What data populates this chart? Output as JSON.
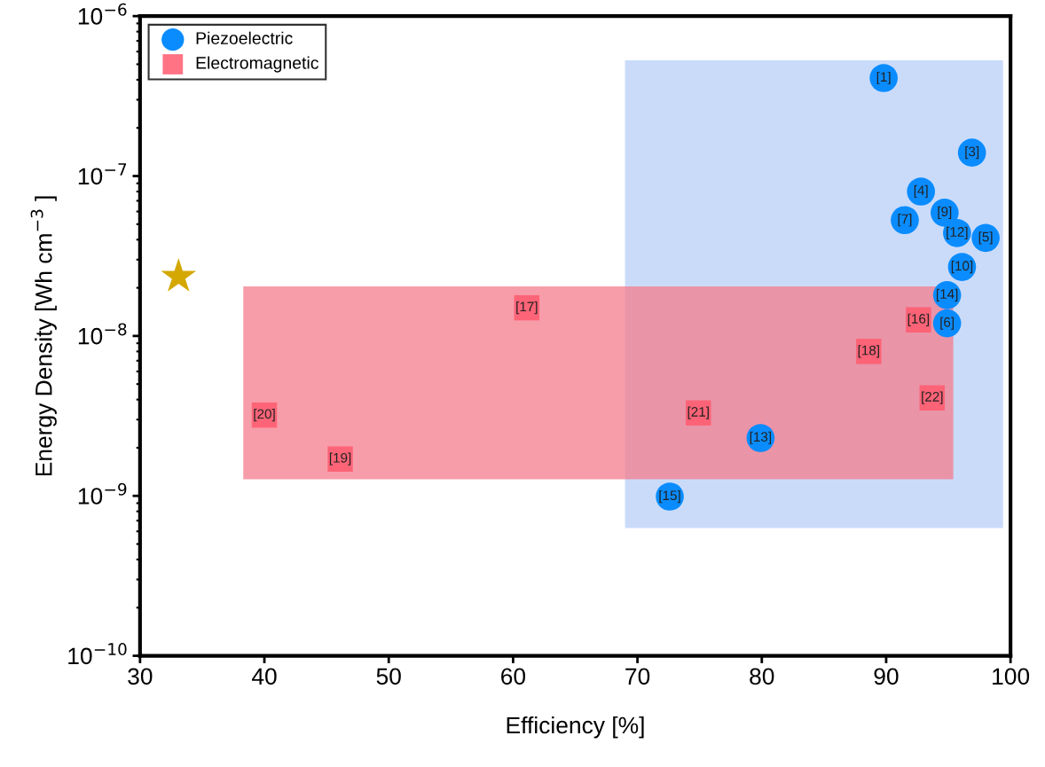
{
  "chart_data": {
    "type": "scatter",
    "xlabel": "Efficiency [%]",
    "ylabel": "Energy Density [Wh cm$^{−3}$ ]",
    "log": "y",
    "xlim": [
      30,
      100
    ],
    "xticks": [
      30,
      40,
      50,
      60,
      70,
      80,
      90,
      100
    ],
    "ylim": [
      1e-10,
      1e-06
    ],
    "yticks": [
      {
        "value": 1e-10,
        "label": "10$^{−10}$"
      },
      {
        "value": 1e-09,
        "label": "10$^{−9}$"
      },
      {
        "value": 1e-08,
        "label": "10$^{−8}$"
      },
      {
        "value": 1e-07,
        "label": "10$^{−7}$"
      },
      {
        "value": 1e-06,
        "label": "10$^{−6}$"
      }
    ],
    "grid": false,
    "legend": "top left",
    "series": [
      {
        "type": "area",
        "color": "#b8cff8",
        "x": [
          69.0,
          69.0,
          99.4,
          99.4
        ],
        "values": [
          6.3e-10,
          5.3e-07,
          5.3e-07,
          6.3e-10
        ]
      },
      {
        "type": "area",
        "color": "#f47c8c",
        "x": [
          38.3,
          38.3,
          95.4,
          95.4
        ],
        "values": [
          1.27e-09,
          2.04e-08,
          2.04e-08,
          1.27e-09
        ]
      },
      {
        "name": "Piezoelectric",
        "color": "#0a8cff",
        "marker": "circle",
        "x": [
          89.8,
          96.9,
          92.8,
          94.7,
          91.5,
          95.7,
          98.0,
          96.1,
          94.9,
          94.9,
          79.9,
          72.6
        ],
        "values": [
          4.1e-07,
          1.4e-07,
          8e-08,
          5.9e-08,
          5.3e-08,
          4.4e-08,
          4.1e-08,
          2.7e-08,
          1.8e-08,
          1.2e-08,
          2.3e-09,
          9.9e-10
        ]
      },
      {
        "name": "Electromagnetic",
        "color": "#ff5a6e",
        "marker": "square",
        "x": [
          61.1,
          92.6,
          88.6,
          93.7,
          74.9,
          40.0,
          46.1
        ],
        "values": [
          1.5e-08,
          1.26e-08,
          8e-09,
          4.1e-09,
          3.3e-09,
          3.2e-09,
          1.7e-09
        ]
      },
      {
        "color": "#d4a800",
        "marker": "star",
        "x": [
          33.1
        ],
        "values": [
          2.35e-08
        ]
      }
    ],
    "annotations": [
      {
        "text": "[1]",
        "x": 89.8,
        "y": 4.1e-07
      },
      {
        "text": "[3]",
        "x": 96.9,
        "y": 1.4e-07
      },
      {
        "text": "[4]",
        "x": 92.8,
        "y": 8e-08
      },
      {
        "text": "[9]",
        "x": 94.7,
        "y": 5.9e-08
      },
      {
        "text": "[7]",
        "x": 91.5,
        "y": 5.3e-08
      },
      {
        "text": "[12]",
        "x": 95.7,
        "y": 4.4e-08
      },
      {
        "text": "[5]",
        "x": 98.0,
        "y": 4.1e-08
      },
      {
        "text": "[10]",
        "x": 96.1,
        "y": 2.7e-08
      },
      {
        "text": "[14]",
        "x": 94.9,
        "y": 1.8e-08
      },
      {
        "text": "[6]",
        "x": 94.9,
        "y": 1.2e-08
      },
      {
        "text": "[13]",
        "x": 79.9,
        "y": 2.3e-09
      },
      {
        "text": "[15]",
        "x": 72.6,
        "y": 9.9e-10
      },
      {
        "text": "[17]",
        "x": 61.1,
        "y": 1.5e-08
      },
      {
        "text": "[16]",
        "x": 92.6,
        "y": 1.26e-08
      },
      {
        "text": "[18]",
        "x": 88.6,
        "y": 8e-09
      },
      {
        "text": "[22]",
        "x": 93.7,
        "y": 4.1e-09
      },
      {
        "text": "[21]",
        "x": 74.9,
        "y": 3.3e-09
      },
      {
        "text": "[20]",
        "x": 40.0,
        "y": 3.2e-09
      },
      {
        "text": "[19]",
        "x": 46.1,
        "y": 1.7e-09
      }
    ]
  }
}
